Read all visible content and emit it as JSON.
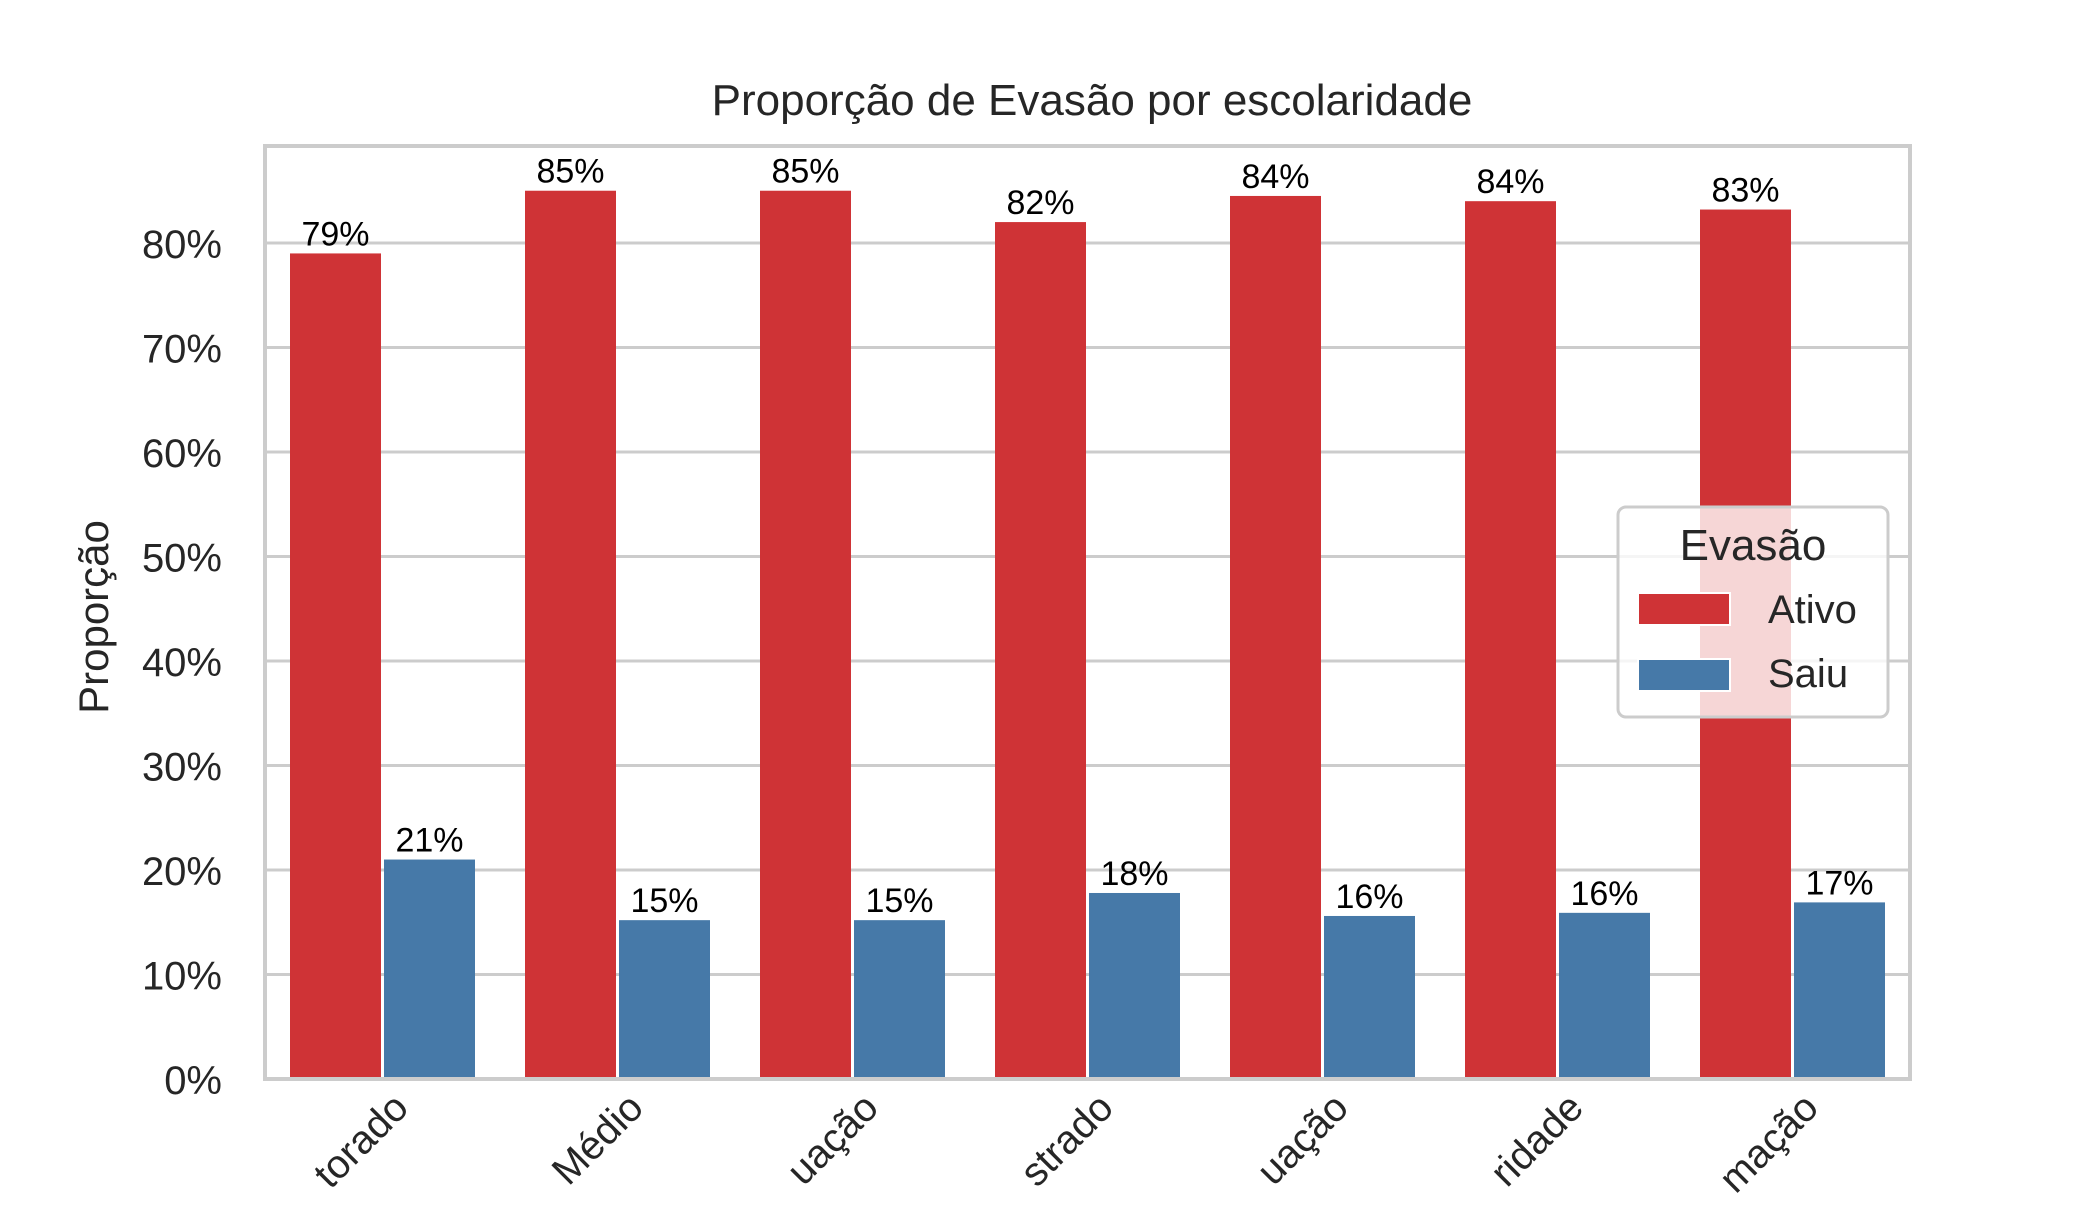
{
  "chart_data": {
    "type": "bar",
    "title": "Proporção de Evasão por escolaridade",
    "xlabel": "",
    "ylabel": "Proporção",
    "ylim": [
      0,
      0.8928
    ],
    "yticks": [
      "0%",
      "10%",
      "20%",
      "30%",
      "40%",
      "50%",
      "60%",
      "70%",
      "80%"
    ],
    "ytick_values": [
      0,
      0.1,
      0.2,
      0.3,
      0.4,
      0.5,
      0.6,
      0.7,
      0.8
    ],
    "categories": [
      "torado",
      "Médio",
      "uação",
      "strado",
      "uação",
      "ridade",
      "mação"
    ],
    "series": [
      {
        "name": "Ativo",
        "color": "#CF3336",
        "values": [
          0.79,
          0.85,
          0.85,
          0.82,
          0.845,
          0.84,
          0.832
        ],
        "labels": [
          "79%",
          "85%",
          "85%",
          "82%",
          "84%",
          "84%",
          "83%"
        ]
      },
      {
        "name": "Saiu",
        "color": "#4679A8",
        "values": [
          0.21,
          0.152,
          0.152,
          0.178,
          0.156,
          0.159,
          0.169
        ],
        "labels": [
          "21%",
          "15%",
          "15%",
          "18%",
          "16%",
          "16%",
          "17%"
        ]
      }
    ],
    "legend": {
      "title": "Evasão",
      "placement": "center-right"
    },
    "grid": "y"
  }
}
